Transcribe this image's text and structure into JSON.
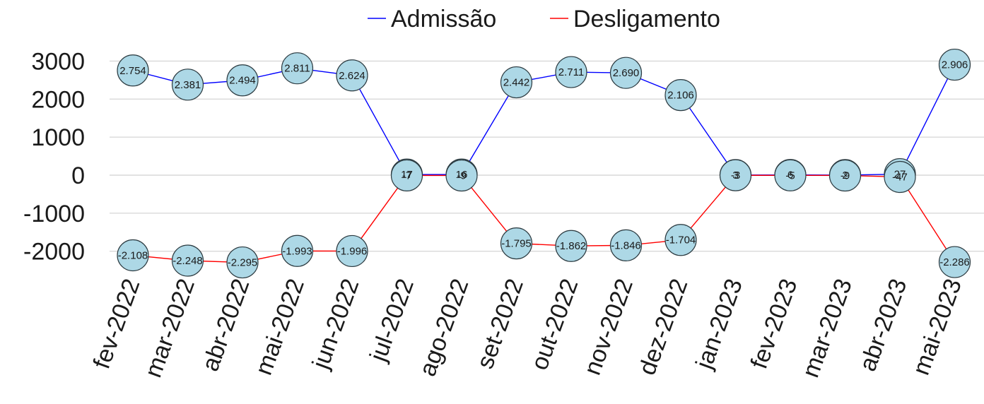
{
  "chart_data": {
    "type": "line",
    "title": "",
    "xlabel": "",
    "ylabel": "",
    "categories": [
      "fev-2022",
      "mar-2022",
      "abr-2022",
      "mai-2022",
      "jun-2022",
      "jul-2022",
      "ago-2022",
      "set-2022",
      "out-2022",
      "nov-2022",
      "dez-2022",
      "jan-2023",
      "fev-2023",
      "mar-2023",
      "abr-2023",
      "mai-2023"
    ],
    "ylim": [
      -2500,
      3200
    ],
    "yticks": [
      3000,
      2000,
      1000,
      0,
      -1000,
      -2000
    ],
    "ytick_labels": [
      "3000",
      "2000",
      "1000",
      "0",
      "-1000",
      "-2000"
    ],
    "grid": true,
    "legend_position": "top",
    "marker_fill": "#add8e6",
    "series": [
      {
        "name": "Admissão",
        "color": "#0000ff",
        "values": [
          2754,
          2381,
          2494,
          2811,
          2624,
          17,
          16,
          2442,
          2711,
          2690,
          2106,
          3,
          6,
          2,
          27,
          2906
        ],
        "labels": [
          "2.754",
          "2.381",
          "2.494",
          "2.811",
          "2.624",
          "17",
          "16",
          "2.442",
          "2.711",
          "2.690",
          "2.106",
          "3",
          "6",
          "2",
          "27",
          "2.906"
        ]
      },
      {
        "name": "Desligamento",
        "color": "#ff0000",
        "values": [
          -2108,
          -2248,
          -2295,
          -1993,
          -1996,
          -7,
          -9,
          -1795,
          -1862,
          -1846,
          -1704,
          -3,
          -5,
          -9,
          -47,
          -2286
        ],
        "labels": [
          "-2.108",
          "-2.248",
          "-2.295",
          "-1.993",
          "-1.996",
          "-7",
          "-9",
          "-1.795",
          "-1.862",
          "-1.846",
          "-1.704",
          "-3",
          "-5",
          "-9",
          "-47",
          "-2.286"
        ]
      }
    ]
  }
}
